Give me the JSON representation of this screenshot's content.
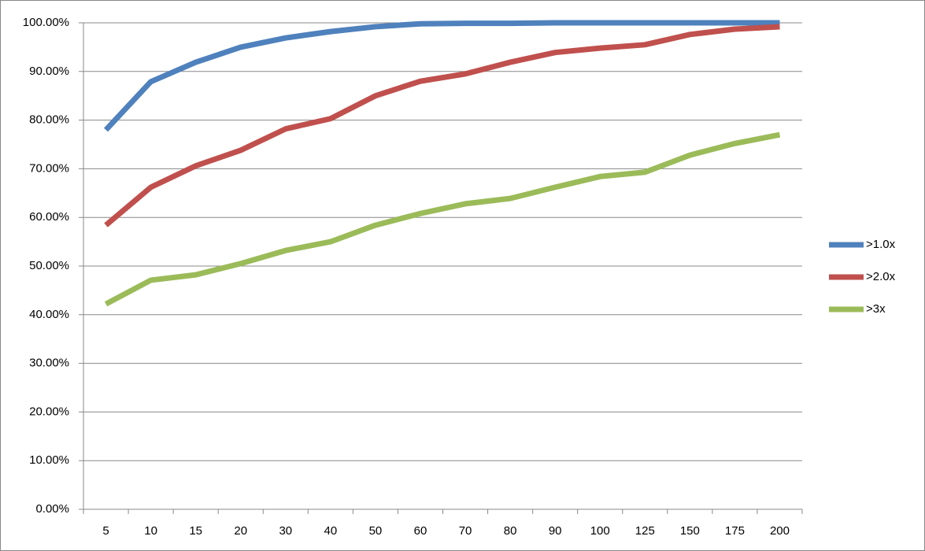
{
  "chart_data": {
    "type": "line",
    "categories": [
      "5",
      "10",
      "15",
      "20",
      "30",
      "40",
      "50",
      "60",
      "70",
      "80",
      "90",
      "100",
      "125",
      "150",
      "175",
      "200"
    ],
    "series": [
      {
        "name": ">1.0x",
        "color": "#4f81bd",
        "values": [
          78.0,
          87.9,
          91.9,
          95.0,
          96.9,
          98.2,
          99.2,
          99.8,
          99.9,
          99.9,
          100,
          100,
          100,
          100,
          100,
          100
        ]
      },
      {
        "name": ">2.0x",
        "color": "#c0504d",
        "values": [
          58.4,
          66.2,
          70.6,
          73.8,
          78.2,
          80.3,
          85.0,
          88.0,
          89.5,
          91.9,
          93.9,
          94.8,
          95.5,
          97.6,
          98.7,
          99.2
        ]
      },
      {
        "name": ">3x",
        "color": "#9bbb59",
        "values": [
          42.2,
          47.1,
          48.2,
          50.5,
          53.2,
          55.0,
          58.4,
          60.8,
          62.8,
          63.9,
          66.2,
          68.4,
          69.3,
          72.8,
          75.2,
          77.0
        ]
      }
    ],
    "ylim": [
      0,
      100
    ],
    "yticks": [
      {
        "value": 0,
        "label": "0.00%"
      },
      {
        "value": 10,
        "label": "10.00%"
      },
      {
        "value": 20,
        "label": "20.00%"
      },
      {
        "value": 30,
        "label": "30.00%"
      },
      {
        "value": 40,
        "label": "40.00%"
      },
      {
        "value": 50,
        "label": "50.00%"
      },
      {
        "value": 60,
        "label": "60.00%"
      },
      {
        "value": 70,
        "label": "70.00%"
      },
      {
        "value": 80,
        "label": "80.00%"
      },
      {
        "value": 90,
        "label": "90.00%"
      },
      {
        "value": 100,
        "label": "100.00%"
      }
    ],
    "grid": true,
    "legend": "right"
  }
}
